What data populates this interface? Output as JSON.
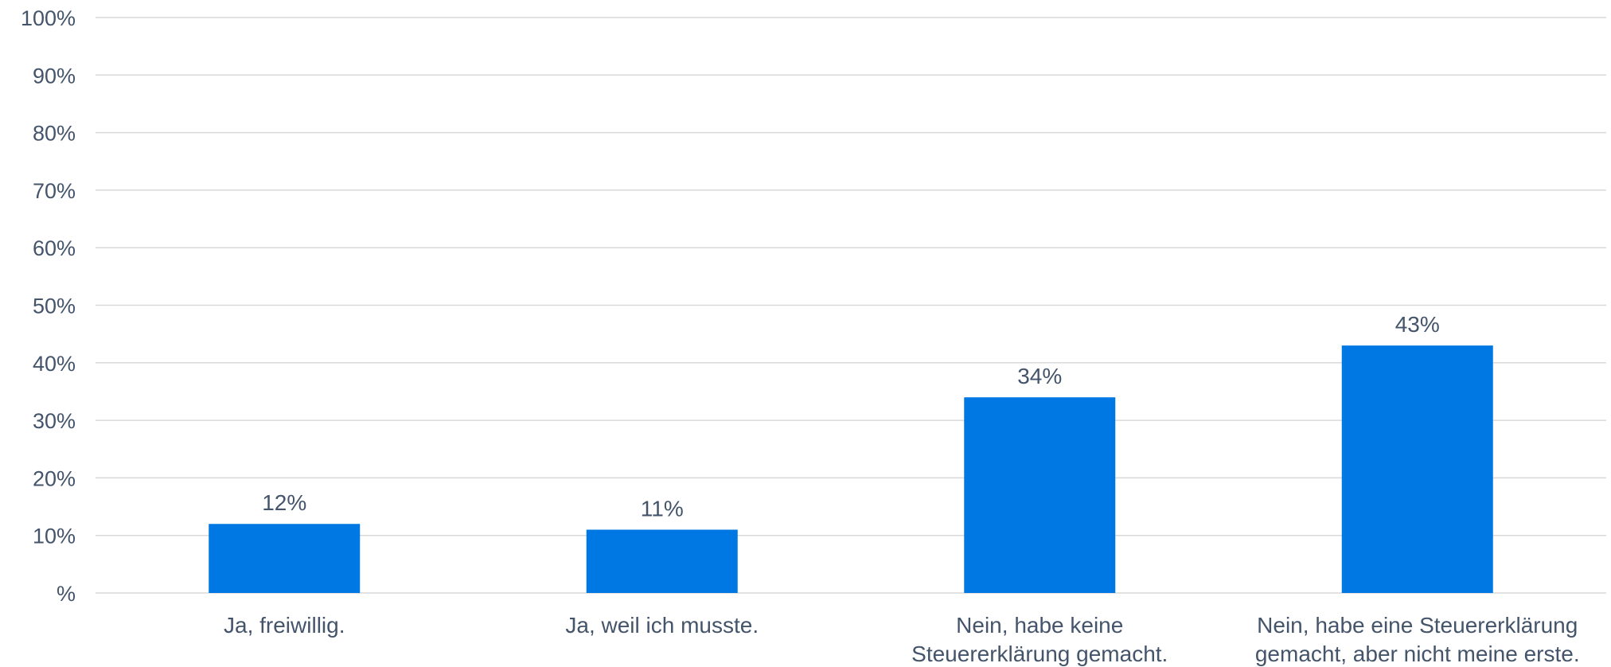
{
  "chart_data": {
    "type": "bar",
    "categories": [
      [
        "Ja, freiwillig."
      ],
      [
        "Ja, weil ich musste."
      ],
      [
        "Nein, habe keine",
        "Steuererklärung gemacht."
      ],
      [
        "Nein, habe eine Steuererklärung",
        "gemacht, aber nicht meine erste."
      ]
    ],
    "values": [
      12,
      11,
      34,
      43
    ],
    "data_labels": [
      "12%",
      "11%",
      "34%",
      "43%"
    ],
    "ylim": [
      0,
      100
    ],
    "y_ticks": [
      0,
      10,
      20,
      30,
      40,
      50,
      60,
      70,
      80,
      90,
      100
    ],
    "y_tick_labels": [
      "%",
      "10%",
      "20%",
      "30%",
      "40%",
      "50%",
      "60%",
      "70%",
      "80%",
      "90%",
      "100%"
    ],
    "bar_color": "#0078e3",
    "gridlines": true,
    "legend": "none"
  }
}
